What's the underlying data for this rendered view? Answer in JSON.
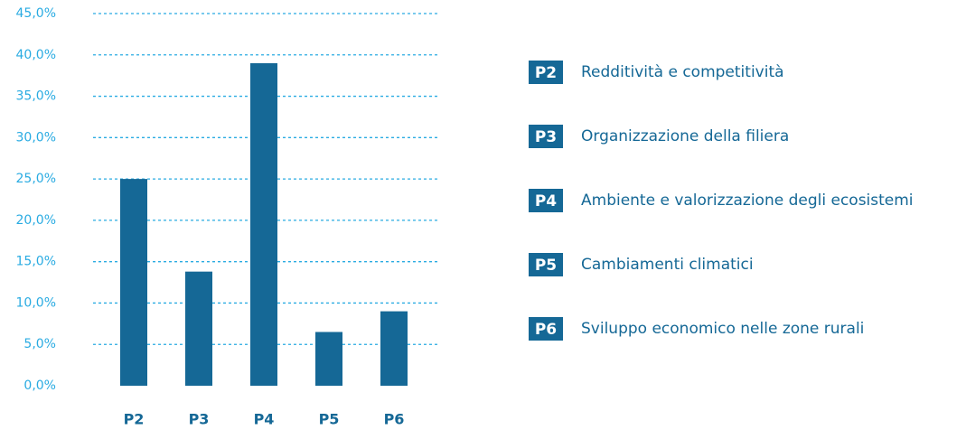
{
  "chart_data": {
    "type": "bar",
    "categories": [
      "P2",
      "P3",
      "P4",
      "P5",
      "P6"
    ],
    "values": [
      25,
      13.8,
      39,
      6.5,
      9
    ],
    "color": "#156896",
    "ylim": [
      0,
      45
    ],
    "yticks": [
      {
        "value": 0,
        "label": "0,0%"
      },
      {
        "value": 5,
        "label": "5,0%"
      },
      {
        "value": 10,
        "label": "10,0%"
      },
      {
        "value": 15,
        "label": "15,0%"
      },
      {
        "value": 20,
        "label": "20,0%"
      },
      {
        "value": 25,
        "label": "25,0%"
      },
      {
        "value": 30,
        "label": "30,0%"
      },
      {
        "value": 35,
        "label": "35,0%"
      },
      {
        "value": 40,
        "label": "40,0%"
      },
      {
        "value": 45,
        "label": "45,0%"
      }
    ],
    "grid": true,
    "legend": [
      "Redditività e competitività",
      "Organizzazione della filiera",
      "Ambiente e valorizzazione degli ecosistemi",
      "Cambiamenti climatici",
      "Sviluppo economico nelle zone rurali"
    ]
  }
}
